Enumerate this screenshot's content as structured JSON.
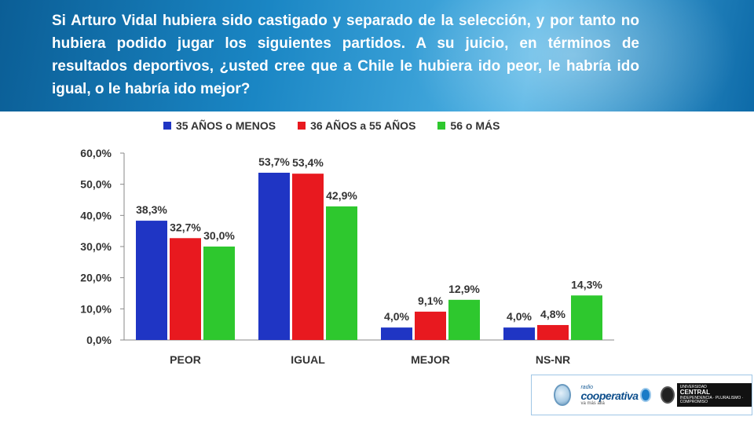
{
  "header": {
    "question": "Si Arturo Vidal hubiera sido castigado y separado de la selección, y por tanto no hubiera podido jugar los siguientes partidos. A su juicio, en términos de resultados deportivos, ¿usted cree que a Chile le hubiera ido peor, le habría ido igual, o le habría ido mejor?"
  },
  "chart_data": {
    "type": "bar",
    "categories": [
      "PEOR",
      "IGUAL",
      "MEJOR",
      "NS-NR"
    ],
    "series": [
      {
        "name": "35 AÑOS o MENOS",
        "color": "#1f35c4",
        "values": [
          38.3,
          53.7,
          4.0,
          4.0
        ],
        "labels": [
          "38,3%",
          "53,7%",
          "4,0%",
          "4,0%"
        ]
      },
      {
        "name": "36 AÑOS a 55 AÑOS",
        "color": "#e8191f",
        "values": [
          32.7,
          53.4,
          9.1,
          4.8
        ],
        "labels": [
          "32,7%",
          "53,4%",
          "9,1%",
          "4,8%"
        ]
      },
      {
        "name": "56 o MÁS",
        "color": "#2ec82e",
        "values": [
          30.0,
          42.9,
          12.9,
          14.3
        ],
        "labels": [
          "30,0%",
          "42,9%",
          "12,9%",
          "14,3%"
        ]
      }
    ],
    "yticks": [
      "0,0%",
      "10,0%",
      "20,0%",
      "30,0%",
      "40,0%",
      "50,0%",
      "60,0%"
    ],
    "ylim": [
      0,
      60
    ],
    "legend_position": "top",
    "grid": false
  },
  "logos": {
    "cooperativa_top": "radio",
    "cooperativa_main": "cooperativa",
    "cooperativa_sub": "va más allá",
    "uc_title": "CENTRAL",
    "uc_small": "UNIVERSIDAD",
    "uc_motto": "INDEPENDENCIA · PLURALISMO · COMPROMISO"
  }
}
